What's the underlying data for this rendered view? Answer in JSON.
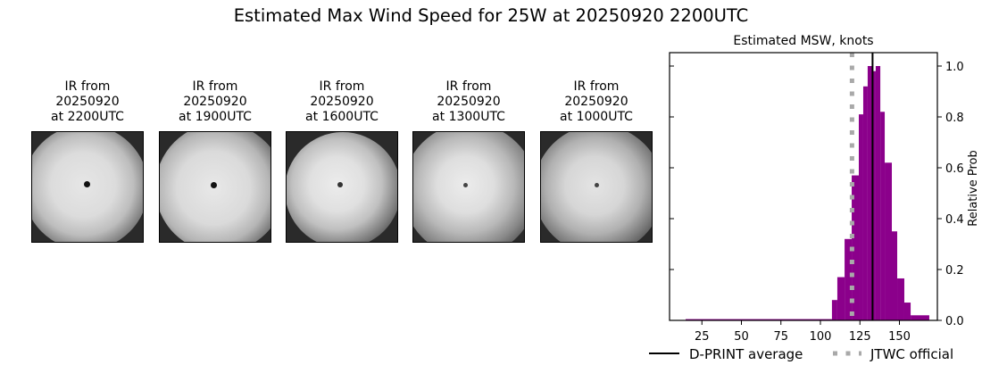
{
  "title": "Estimated Max Wind Speed for 25W at 20250920 2200UTC",
  "panels": [
    {
      "line1": "IR from",
      "line2": "20250920",
      "line3": "at 2200UTC"
    },
    {
      "line1": "IR from",
      "line2": "20250920",
      "line3": "at 1900UTC"
    },
    {
      "line1": "IR from",
      "line2": "20250920",
      "line3": "at 1600UTC"
    },
    {
      "line1": "IR from",
      "line2": "20250920",
      "line3": "at 1300UTC"
    },
    {
      "line1": "IR from",
      "line2": "20250920",
      "line3": "at 1000UTC"
    }
  ],
  "chart_data": {
    "type": "bar",
    "title": "Estimated MSW, knots",
    "xlabel": "",
    "ylabel": "Relative Prob",
    "xlim": [
      0,
      173
    ],
    "ylim": [
      0,
      1.05
    ],
    "xticks": [
      25,
      50,
      75,
      100,
      125,
      150
    ],
    "yticks": [
      "0.0",
      "0.2",
      "0.4",
      "0.6",
      "0.8",
      "1.0"
    ],
    "grid": false,
    "bar_color": "#8b008b",
    "bins": [
      {
        "x0": 14.7,
        "x1": 107.3,
        "value": 0.005
      },
      {
        "x0": 107.3,
        "x1": 110.7,
        "value": 0.08
      },
      {
        "x0": 110.7,
        "x1": 115.3,
        "value": 0.17
      },
      {
        "x0": 115.3,
        "x1": 119.8,
        "value": 0.32
      },
      {
        "x0": 119.8,
        "x1": 124.3,
        "value": 0.57
      },
      {
        "x0": 124.3,
        "x1": 127.1,
        "value": 0.81
      },
      {
        "x0": 127.1,
        "x1": 129.9,
        "value": 0.92
      },
      {
        "x0": 129.9,
        "x1": 132.8,
        "value": 1.0
      },
      {
        "x0": 132.8,
        "x1": 135.0,
        "value": 0.98
      },
      {
        "x0": 135.0,
        "x1": 137.9,
        "value": 1.0
      },
      {
        "x0": 137.9,
        "x1": 140.7,
        "value": 0.82
      },
      {
        "x0": 140.7,
        "x1": 145.2,
        "value": 0.62
      },
      {
        "x0": 145.2,
        "x1": 148.6,
        "value": 0.35
      },
      {
        "x0": 148.6,
        "x1": 153.1,
        "value": 0.165
      },
      {
        "x0": 153.1,
        "x1": 157.1,
        "value": 0.07
      },
      {
        "x0": 157.1,
        "x1": 168.9,
        "value": 0.02
      }
    ],
    "lines": [
      {
        "name": "D-PRINT average",
        "x": 133,
        "style": "solid",
        "color": "#000000"
      },
      {
        "name": "JTWC official",
        "x": 120,
        "style": "dotted",
        "color": "#a9a9a9"
      }
    ],
    "legend": {
      "position": "bottom",
      "entries": [
        "D-PRINT average",
        "JTWC official"
      ]
    }
  }
}
